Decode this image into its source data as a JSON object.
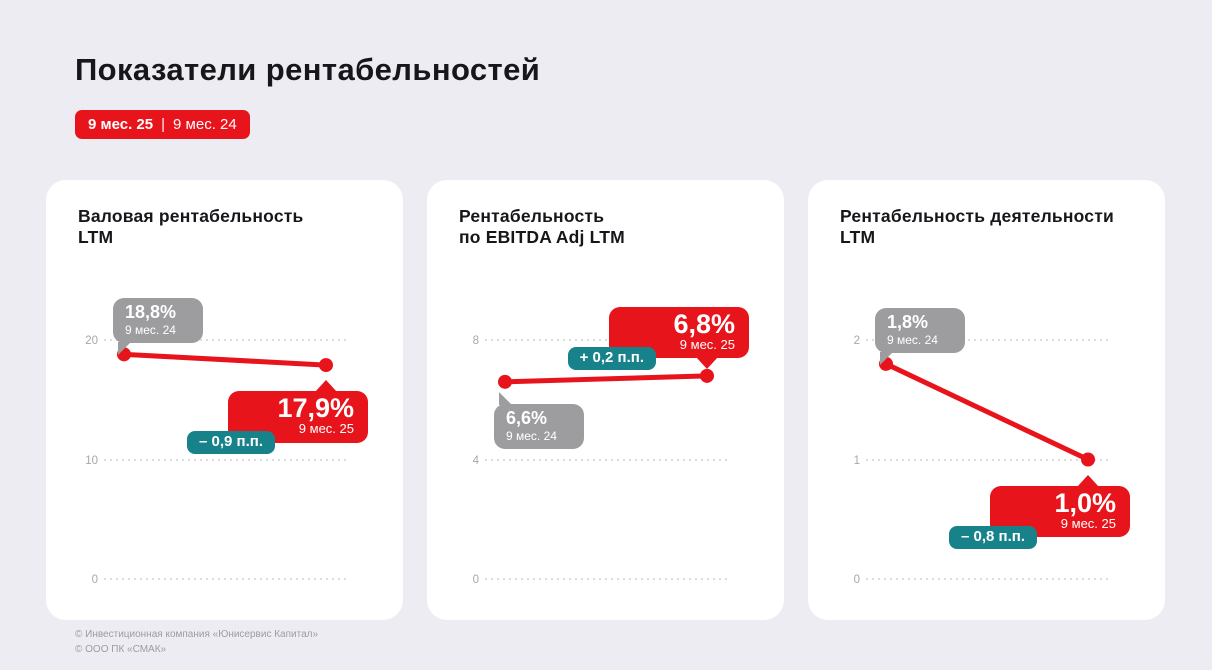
{
  "page": {
    "title": "Показатели рентабельностей",
    "period_badge": {
      "current": "9 мес. 25",
      "separator": "|",
      "previous": "9 мес. 24"
    },
    "footer": [
      "© Инвестиционная компания «Юнисервис Капитал»",
      "© ООО ПК «СМАК»"
    ]
  },
  "colors": {
    "red": "#E8141C",
    "teal": "#17828A",
    "gray": "#9D9DA0",
    "background": "#EDECF2",
    "card": "#FFFFFF",
    "grid": "#DCDCE0",
    "tick": "#A7A7AD"
  },
  "chart_data": [
    {
      "type": "line",
      "title": "Валовая рентабельность\nLTM",
      "x": [
        "9 мес. 24",
        "9 мес. 25"
      ],
      "values": [
        18.8,
        17.9
      ],
      "yticks": [
        20,
        10,
        0
      ],
      "ylim": [
        0,
        24
      ],
      "grid": "dotted-horizontal",
      "legend": "none",
      "callouts": {
        "previous": {
          "value": "18,8%",
          "label": "9 мес. 24",
          "position": "above"
        },
        "current": {
          "value": "17,9%",
          "label": "9 мес. 25",
          "position": "below"
        },
        "delta": {
          "label": "– 0,9 п.п.",
          "direction": "down"
        }
      }
    },
    {
      "type": "line",
      "title": "Рентабельность\nпо EBITDA Adj LTM",
      "x": [
        "9 мес. 24",
        "9 мес. 25"
      ],
      "values": [
        6.6,
        6.8
      ],
      "yticks": [
        8,
        4,
        0
      ],
      "ylim": [
        0,
        9.6
      ],
      "grid": "dotted-horizontal",
      "legend": "none",
      "callouts": {
        "previous": {
          "value": "6,6%",
          "label": "9 мес. 24",
          "position": "below"
        },
        "current": {
          "value": "6,8%",
          "label": "9 мес. 25",
          "position": "above"
        },
        "delta": {
          "label": "+ 0,2 п.п.",
          "direction": "up"
        }
      }
    },
    {
      "type": "line",
      "title": "Рентабельность деятельности\nLTM",
      "x": [
        "9 мес. 24",
        "9 мес. 25"
      ],
      "values": [
        1.8,
        1.0
      ],
      "yticks": [
        2,
        1,
        0
      ],
      "ylim": [
        0,
        2.4
      ],
      "grid": "dotted-horizontal",
      "legend": "none",
      "callouts": {
        "previous": {
          "value": "1,8%",
          "label": "9 мес. 24",
          "position": "above"
        },
        "current": {
          "value": "1,0%",
          "label": "9 мес. 25",
          "position": "below"
        },
        "delta": {
          "label": "– 0,8 п.п.",
          "direction": "down"
        }
      }
    }
  ]
}
